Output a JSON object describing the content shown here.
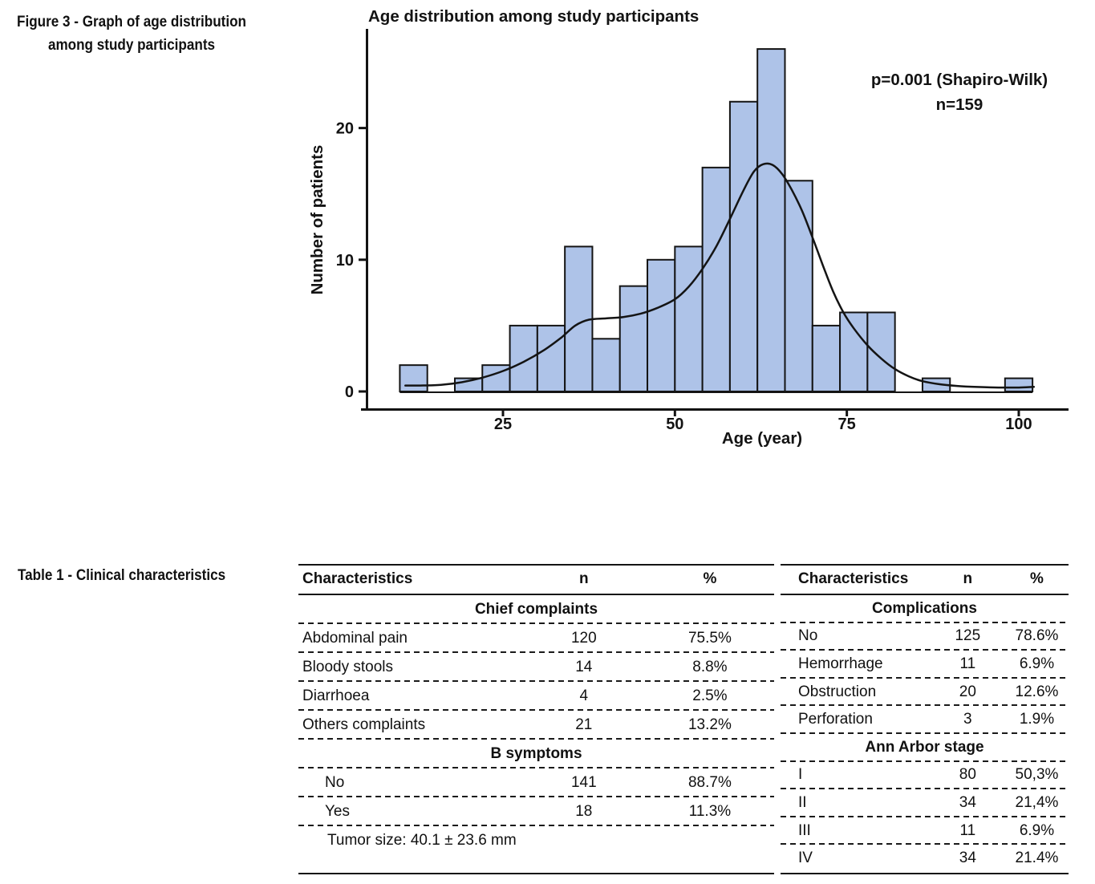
{
  "figure_caption": {
    "line1": "Figure 3 - Graph of age distribution",
    "line2": "among study participants"
  },
  "chart_data": {
    "type": "bar",
    "title": "Age distribution among study participants",
    "xlabel": "Age (year)",
    "ylabel": "Number of patients",
    "annotation": [
      "p=0.001 (Shapiro-Wilk)",
      "n=159"
    ],
    "n_total": 159,
    "bin_start": 10,
    "bin_width": 4,
    "bin_counts": [
      2,
      0,
      1,
      2,
      5,
      5,
      11,
      4,
      8,
      10,
      11,
      17,
      22,
      26,
      16,
      5,
      6,
      6,
      0,
      1,
      0,
      0,
      1
    ],
    "x_ticks": [
      25,
      50,
      75,
      100
    ],
    "y_ticks": [
      0,
      10,
      20
    ],
    "xlim": [
      8,
      105
    ],
    "ylim": [
      0,
      26.5
    ],
    "grid": false,
    "legend": "none",
    "bar_fill": "#aec3e8",
    "bar_stroke": "#141414",
    "curve_color": "#141414",
    "kde_curve": [
      [
        10.8,
        0.45
      ],
      [
        13,
        0.45
      ],
      [
        16,
        0.5
      ],
      [
        19,
        0.7
      ],
      [
        22,
        1.05
      ],
      [
        25,
        1.55
      ],
      [
        28,
        2.25
      ],
      [
        31,
        3.15
      ],
      [
        33.5,
        4.1
      ],
      [
        35.5,
        5.0
      ],
      [
        37.5,
        5.45
      ],
      [
        40,
        5.55
      ],
      [
        42.5,
        5.65
      ],
      [
        45,
        5.9
      ],
      [
        47.5,
        6.35
      ],
      [
        50,
        7.0
      ],
      [
        52,
        7.95
      ],
      [
        54,
        9.3
      ],
      [
        56,
        11.0
      ],
      [
        58,
        13.1
      ],
      [
        60,
        15.3
      ],
      [
        61.5,
        16.7
      ],
      [
        62.8,
        17.25
      ],
      [
        64.2,
        17.2
      ],
      [
        65.6,
        16.5
      ],
      [
        67,
        15.3
      ],
      [
        68.5,
        13.7
      ],
      [
        70,
        11.7
      ],
      [
        71.5,
        9.6
      ],
      [
        73,
        7.6
      ],
      [
        74.5,
        6.0
      ],
      [
        76,
        4.8
      ],
      [
        78,
        3.5
      ],
      [
        80,
        2.5
      ],
      [
        82,
        1.7
      ],
      [
        84,
        1.15
      ],
      [
        86,
        0.78
      ],
      [
        88.5,
        0.55
      ],
      [
        91,
        0.42
      ],
      [
        94,
        0.34
      ],
      [
        97,
        0.3
      ],
      [
        100,
        0.3
      ],
      [
        102.2,
        0.35
      ]
    ]
  },
  "table": {
    "caption": "Table 1 - Clinical characteristics",
    "left": {
      "headers": [
        "Characteristics",
        "n",
        "%"
      ],
      "sections": [
        {
          "title": "Chief complaints",
          "indent": false,
          "rows": [
            [
              "Abdominal pain",
              "120",
              "75.5%"
            ],
            [
              "Bloody stools",
              "14",
              "8.8%"
            ],
            [
              "Diarrhoea",
              "4",
              "2.5%"
            ],
            [
              "Others complaints",
              "21",
              "13.2%"
            ]
          ]
        },
        {
          "title": "B symptoms",
          "indent": true,
          "rows": [
            [
              "No",
              "141",
              "88.7%"
            ],
            [
              "Yes",
              "18",
              "11.3%"
            ]
          ],
          "footer": "Tumor size: 40.1 ± 23.6 mm"
        }
      ]
    },
    "right": {
      "headers": [
        "Characteristics",
        "n",
        "%"
      ],
      "sections": [
        {
          "title": "Complications",
          "indent": false,
          "rows": [
            [
              "No",
              "125",
              "78.6%"
            ],
            [
              "Hemorrhage",
              "11",
              "6.9%"
            ],
            [
              "Obstruction",
              "20",
              "12.6%"
            ],
            [
              "Perforation",
              "3",
              "1.9%"
            ]
          ]
        },
        {
          "title": "Ann Arbor stage",
          "indent": false,
          "rows": [
            [
              "I",
              "80",
              "50,3%"
            ],
            [
              "II",
              "34",
              "21,4%"
            ],
            [
              "III",
              "11",
              "6.9%"
            ],
            [
              "IV",
              "34",
              "21.4%"
            ]
          ]
        }
      ]
    }
  }
}
